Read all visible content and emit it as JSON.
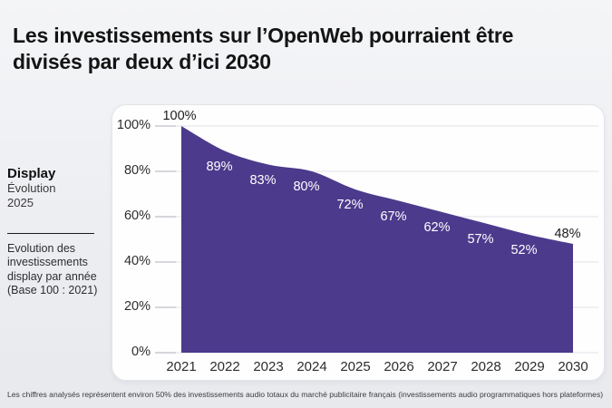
{
  "header": {
    "title_line1": "Les investissements sur l’OpenWeb pourraient être",
    "title_line2": "divisés par deux d’ici 2030"
  },
  "sidebar": {
    "metric": "Display",
    "sub1": "Évolution",
    "sub2": "2025",
    "description": "Evolution des\ninvestissements\ndisplay par année\n(Base 100 : 2021)"
  },
  "chart_data": {
    "type": "area",
    "title": "Les investissements sur l’OpenWeb pourraient être divisés par deux d’ici 2030",
    "categories": [
      "2021",
      "2022",
      "2023",
      "2024",
      "2025",
      "2026",
      "2027",
      "2028",
      "2029",
      "2030"
    ],
    "values": [
      100,
      89,
      83,
      80,
      72,
      67,
      62,
      57,
      52,
      48
    ],
    "value_labels": [
      "100%",
      "89%",
      "83%",
      "80%",
      "72%",
      "67%",
      "62%",
      "57%",
      "52%",
      "48%"
    ],
    "yticks": [
      100,
      80,
      60,
      40,
      20,
      0
    ],
    "ytick_labels": [
      "100%",
      "80%",
      "60%",
      "40%",
      "20%",
      "0%"
    ],
    "ylim": [
      0,
      100
    ],
    "xlabel": "",
    "ylabel": "",
    "grid": true,
    "legend": "none",
    "area_color": "#4c3a8c",
    "grid_color": "#e8e8ed",
    "tick_color": "#d6d6dc",
    "label_color_inside": "#ffffff",
    "label_color_outside": "#1c1c1c",
    "outside_labels": [
      0,
      9
    ]
  },
  "footnote": "Les chiffres analysés représentent environ 50% des investissements audio totaux du marché publicitaire français (investissements audio programmatiques hors plateformes)"
}
